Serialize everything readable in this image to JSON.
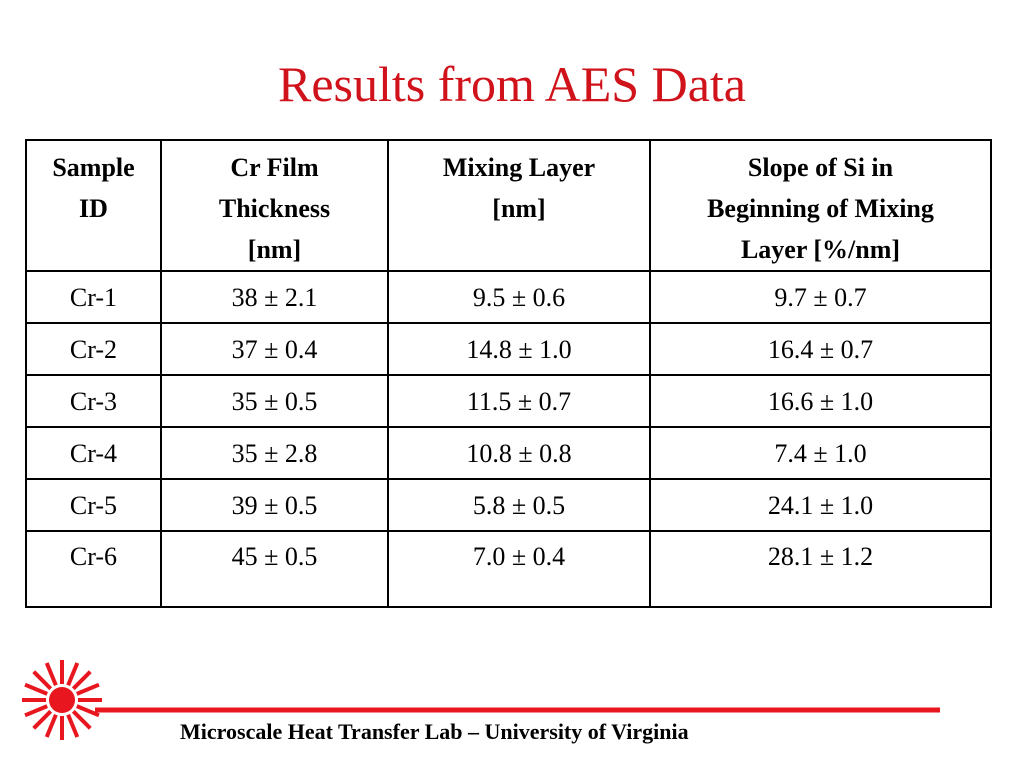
{
  "title": "Results from AES Data",
  "table": {
    "header": [
      [
        "Sample",
        "ID"
      ],
      [
        "Cr Film",
        "Thickness",
        "[nm]"
      ],
      [
        "Mixing Layer",
        "[nm]"
      ],
      [
        "Slope of Si in",
        "Beginning of Mixing",
        "Layer [%/nm]"
      ]
    ],
    "rows": [
      [
        "Cr-1",
        "38 ± 2.1",
        "9.5 ± 0.6",
        "9.7 ± 0.7"
      ],
      [
        "Cr-2",
        "37 ± 0.4",
        "14.8 ± 1.0",
        "16.4 ± 0.7"
      ],
      [
        "Cr-3",
        "35 ± 0.5",
        "11.5 ± 0.7",
        "16.6 ± 1.0"
      ],
      [
        "Cr-4",
        "35 ± 2.8",
        "10.8 ± 0.8",
        "7.4 ± 1.0"
      ],
      [
        "Cr-5",
        "39 ± 0.5",
        "5.8 ± 0.5",
        "24.1 ± 1.0"
      ],
      [
        "Cr-6",
        "45 ± 0.5",
        "7.0 ± 0.4",
        "28.1 ± 1.2"
      ]
    ]
  },
  "footer": "Microscale Heat Transfer Lab – University of Virginia"
}
